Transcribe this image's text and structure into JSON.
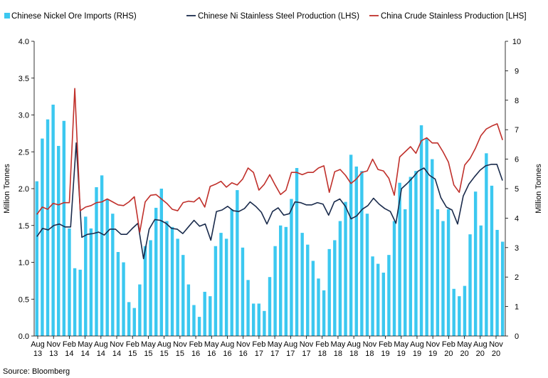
{
  "source": "Source: Bloomberg",
  "chart_data": {
    "type": "bar",
    "legend_position": "top",
    "gridlines": false,
    "x_labels": [
      {
        "month": "Aug",
        "year": "13"
      },
      {
        "month": "Nov",
        "year": "13"
      },
      {
        "month": "Feb",
        "year": "14"
      },
      {
        "month": "May",
        "year": "14"
      },
      {
        "month": "Aug",
        "year": "14"
      },
      {
        "month": "Nov",
        "year": "14"
      },
      {
        "month": "Feb",
        "year": "15"
      },
      {
        "month": "May",
        "year": "15"
      },
      {
        "month": "Aug",
        "year": "15"
      },
      {
        "month": "Nov",
        "year": "15"
      },
      {
        "month": "Feb",
        "year": "16"
      },
      {
        "month": "May",
        "year": "16"
      },
      {
        "month": "Aug",
        "year": "16"
      },
      {
        "month": "Nov",
        "year": "16"
      },
      {
        "month": "Feb",
        "year": "17"
      },
      {
        "month": "May",
        "year": "17"
      },
      {
        "month": "Aug",
        "year": "17"
      },
      {
        "month": "Nov",
        "year": "17"
      },
      {
        "month": "Feb",
        "year": "18"
      },
      {
        "month": "May",
        "year": "18"
      },
      {
        "month": "Aug",
        "year": "18"
      },
      {
        "month": "Nov",
        "year": "18"
      },
      {
        "month": "Feb",
        "year": "19"
      },
      {
        "month": "May",
        "year": "19"
      },
      {
        "month": "Aug",
        "year": "19"
      },
      {
        "month": "Nov",
        "year": "19"
      },
      {
        "month": "Feb",
        "year": "20"
      },
      {
        "month": "May",
        "year": "20"
      },
      {
        "month": "Aug",
        "year": "20"
      },
      {
        "month": "Nov",
        "year": "20"
      }
    ],
    "left_axis": {
      "label": "Million Tonnes",
      "min": 0,
      "max": 4,
      "ticks": [
        "0.0",
        "0.5",
        "1.0",
        "1.5",
        "2.0",
        "2.5",
        "3.0",
        "3.5",
        "4.0"
      ]
    },
    "right_axis": {
      "label": "Million Tonnes",
      "min": 0,
      "max": 10,
      "ticks": [
        "0",
        "1",
        "2",
        "3",
        "4",
        "5",
        "6",
        "7",
        "8",
        "9",
        "10"
      ]
    },
    "series": [
      {
        "name": "Chinese Nickel Ore Imports (RHS)",
        "type": "bar",
        "axis": "right",
        "color": "#3CC8F0",
        "values": [
          5.25,
          6.7,
          7.35,
          7.85,
          6.45,
          7.3,
          3.65,
          2.3,
          2.25,
          4.05,
          3.65,
          5.05,
          5.45,
          4.65,
          4.15,
          2.85,
          2.5,
          1.15,
          0.95,
          1.75,
          3.05,
          3.25,
          4.35,
          5.0,
          3.9,
          3.7,
          3.3,
          2.75,
          1.75,
          1.05,
          0.65,
          1.5,
          1.35,
          3.05,
          3.5,
          3.3,
          4.3,
          4.95,
          3.0,
          1.9,
          1.1,
          1.1,
          0.85,
          2.0,
          3.05,
          3.75,
          3.7,
          4.65,
          5.7,
          3.5,
          3.1,
          2.55,
          1.95,
          1.55,
          2.95,
          3.25,
          3.9,
          4.55,
          6.15,
          5.75,
          5.6,
          4.15,
          2.7,
          2.45,
          2.15,
          2.75,
          3.9,
          5.2,
          4.3,
          5.4,
          5.6,
          7.15,
          6.7,
          6.0,
          4.3,
          3.9,
          4.3,
          1.6,
          1.35,
          1.7,
          3.45,
          4.9,
          3.75,
          6.2,
          5.1,
          3.6,
          3.2
        ]
      },
      {
        "name": "Chinese Ni Stainless Steel Production (LHS)",
        "type": "line",
        "axis": "left",
        "color": "#1A2B4C",
        "values": [
          1.35,
          1.46,
          1.44,
          1.5,
          1.52,
          1.48,
          1.48,
          2.62,
          1.34,
          1.38,
          1.39,
          1.41,
          1.37,
          1.45,
          1.45,
          1.38,
          1.38,
          1.46,
          1.53,
          1.05,
          1.45,
          1.58,
          1.57,
          1.53,
          1.46,
          1.45,
          1.39,
          1.48,
          1.57,
          1.49,
          1.52,
          1.3,
          1.69,
          1.71,
          1.76,
          1.7,
          1.69,
          1.73,
          1.82,
          1.76,
          1.68,
          1.52,
          1.69,
          1.74,
          1.64,
          1.66,
          1.82,
          1.81,
          1.78,
          1.78,
          1.81,
          1.79,
          1.64,
          1.82,
          1.86,
          1.76,
          1.59,
          1.63,
          1.72,
          1.77,
          1.87,
          1.79,
          1.73,
          1.69,
          1.53,
          2.0,
          2.07,
          2.15,
          2.24,
          2.28,
          2.18,
          2.13,
          1.88,
          1.75,
          1.71,
          1.52,
          1.9,
          2.06,
          2.16,
          2.25,
          2.31,
          2.33,
          2.33,
          2.11
        ]
      },
      {
        "name": "China Crude Stainless Production [LHS]",
        "type": "line",
        "axis": "left",
        "color": "#C0302B",
        "values": [
          1.65,
          1.75,
          1.72,
          1.8,
          1.78,
          1.81,
          1.81,
          3.36,
          1.7,
          1.75,
          1.77,
          1.81,
          1.82,
          1.86,
          1.82,
          1.78,
          1.77,
          1.82,
          1.89,
          1.41,
          1.82,
          1.91,
          1.92,
          1.86,
          1.8,
          1.72,
          1.7,
          1.81,
          1.83,
          1.82,
          1.88,
          1.75,
          2.03,
          2.06,
          2.1,
          2.02,
          2.08,
          2.05,
          2.13,
          2.28,
          2.22,
          1.98,
          2.06,
          2.19,
          2.05,
          1.92,
          1.98,
          2.22,
          2.22,
          2.19,
          2.22,
          2.22,
          2.28,
          2.31,
          1.95,
          2.23,
          2.26,
          2.18,
          2.07,
          2.13,
          2.22,
          2.24,
          2.4,
          2.26,
          2.24,
          2.14,
          1.91,
          2.43,
          2.5,
          2.57,
          2.48,
          2.65,
          2.69,
          2.62,
          2.62,
          2.5,
          2.36,
          2.05,
          1.95,
          2.32,
          2.41,
          2.55,
          2.72,
          2.81,
          2.85,
          2.88,
          2.66
        ]
      }
    ]
  }
}
